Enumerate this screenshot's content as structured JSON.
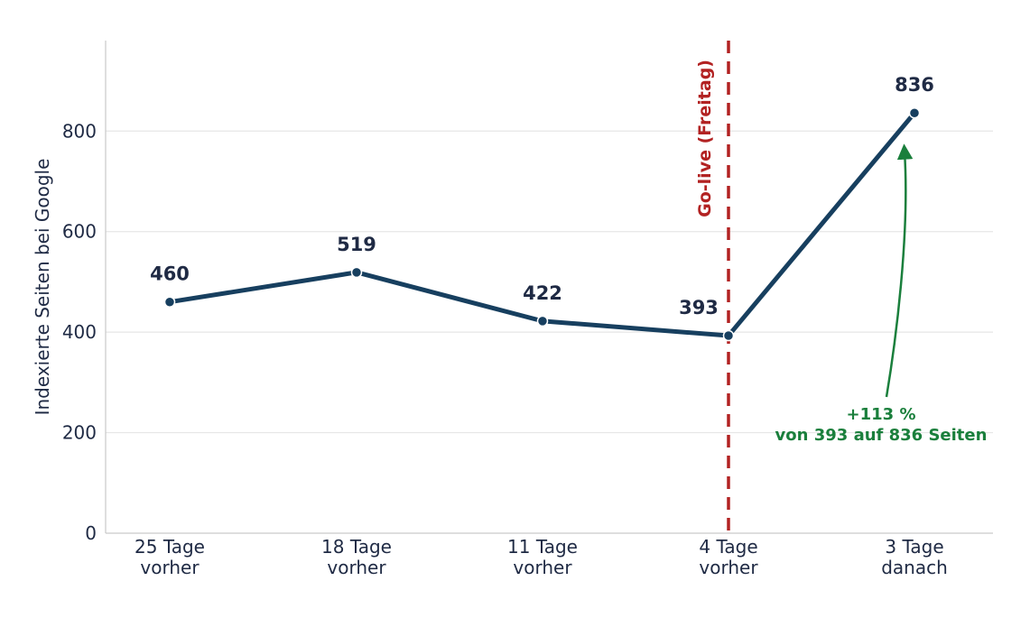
{
  "chart_data": {
    "type": "line",
    "categories": [
      "25 Tage\nvorher",
      "18 Tage\nvorher",
      "11 Tage\nvorher",
      "4 Tage\nvorher",
      "3 Tage\ndanach"
    ],
    "series": [
      {
        "values": [
          460,
          519,
          422,
          393,
          836
        ],
        "color": "#173f5f"
      }
    ],
    "data_labels": [
      "460",
      "519",
      "422",
      "393",
      "836"
    ],
    "ylabel": "Indexierte Seiten bei Google",
    "xlabel": "",
    "ylim": [
      0,
      980
    ],
    "yticks": [
      0,
      200,
      400,
      600,
      800
    ],
    "grid": "horizontal",
    "event_marker": {
      "label": "Go-live (Freitag)",
      "after_category_index": 3,
      "color": "#b22222",
      "style": "dashed"
    },
    "annotation": {
      "line1": "+113 %",
      "line2": "von 393 auf 836 Seiten",
      "color": "#1a7f3c",
      "arrow_to_category_index": 4
    }
  }
}
